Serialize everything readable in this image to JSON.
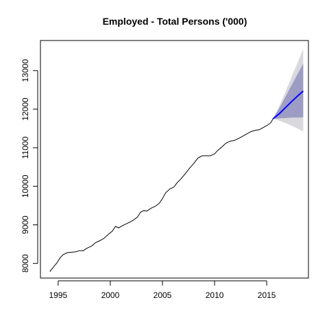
{
  "chart_data": {
    "type": "line",
    "title": "Employed - Total Persons ('000)",
    "xlabel": "",
    "ylabel": "",
    "xlim": [
      1993.3,
      2019.0
    ],
    "ylim": [
      7620,
      13780
    ],
    "x_ticks": [
      1995,
      2000,
      2005,
      2010,
      2015
    ],
    "y_ticks": [
      8000,
      9000,
      10000,
      11000,
      12000,
      13000
    ],
    "grid": false,
    "legend": "none",
    "colors": {
      "history": "#000000",
      "forecast": "#0000ff",
      "band95": "#d9d9dd",
      "band80": "#9c9cc4"
    },
    "series": [
      {
        "role": "history",
        "points": [
          [
            1994.2,
            7790
          ],
          [
            1994.5,
            7890
          ],
          [
            1994.9,
            8020
          ],
          [
            1995.2,
            8150
          ],
          [
            1995.5,
            8230
          ],
          [
            1995.9,
            8280
          ],
          [
            1996.3,
            8290
          ],
          [
            1996.7,
            8300
          ],
          [
            1997.0,
            8330
          ],
          [
            1997.4,
            8330
          ],
          [
            1997.8,
            8400
          ],
          [
            1998.2,
            8450
          ],
          [
            1998.6,
            8540
          ],
          [
            1999.0,
            8590
          ],
          [
            1999.4,
            8650
          ],
          [
            1999.8,
            8750
          ],
          [
            2000.2,
            8840
          ],
          [
            2000.5,
            8960
          ],
          [
            2000.8,
            8920
          ],
          [
            2001.1,
            8970
          ],
          [
            2001.4,
            9010
          ],
          [
            2001.8,
            9060
          ],
          [
            2002.2,
            9120
          ],
          [
            2002.6,
            9200
          ],
          [
            2002.9,
            9330
          ],
          [
            2003.2,
            9370
          ],
          [
            2003.5,
            9360
          ],
          [
            2003.9,
            9430
          ],
          [
            2004.3,
            9480
          ],
          [
            2004.7,
            9560
          ],
          [
            2005.0,
            9680
          ],
          [
            2005.3,
            9830
          ],
          [
            2005.7,
            9930
          ],
          [
            2006.1,
            9980
          ],
          [
            2006.4,
            10090
          ],
          [
            2006.8,
            10200
          ],
          [
            2007.2,
            10330
          ],
          [
            2007.6,
            10470
          ],
          [
            2008.0,
            10590
          ],
          [
            2008.4,
            10730
          ],
          [
            2008.8,
            10790
          ],
          [
            2009.2,
            10790
          ],
          [
            2009.6,
            10790
          ],
          [
            2010.0,
            10840
          ],
          [
            2010.3,
            10930
          ],
          [
            2010.7,
            11020
          ],
          [
            2011.1,
            11120
          ],
          [
            2011.5,
            11170
          ],
          [
            2011.9,
            11190
          ],
          [
            2012.3,
            11240
          ],
          [
            2012.7,
            11300
          ],
          [
            2013.1,
            11360
          ],
          [
            2013.5,
            11420
          ],
          [
            2013.9,
            11450
          ],
          [
            2014.3,
            11470
          ],
          [
            2014.7,
            11530
          ],
          [
            2015.1,
            11590
          ],
          [
            2015.4,
            11650
          ],
          [
            2015.6,
            11750
          ]
        ]
      },
      {
        "role": "forecast",
        "points": [
          [
            2015.6,
            11750
          ],
          [
            2016.2,
            11880
          ],
          [
            2016.8,
            12040
          ],
          [
            2017.4,
            12200
          ],
          [
            2018.0,
            12350
          ],
          [
            2018.5,
            12470
          ]
        ]
      }
    ],
    "bands": [
      {
        "level": 95,
        "x": [
          2015.6,
          2016.2,
          2016.8,
          2017.4,
          2018.0,
          2018.5
        ],
        "lower": [
          11750,
          11700,
          11640,
          11570,
          11490,
          11420
        ],
        "upper": [
          11750,
          12080,
          12450,
          12850,
          13230,
          13560
        ]
      },
      {
        "level": 80,
        "x": [
          2015.6,
          2016.2,
          2016.8,
          2017.4,
          2018.0,
          2018.5
        ],
        "lower": [
          11750,
          11760,
          11770,
          11780,
          11780,
          11790
        ],
        "upper": [
          11750,
          12020,
          12320,
          12630,
          12930,
          13180
        ]
      }
    ]
  }
}
